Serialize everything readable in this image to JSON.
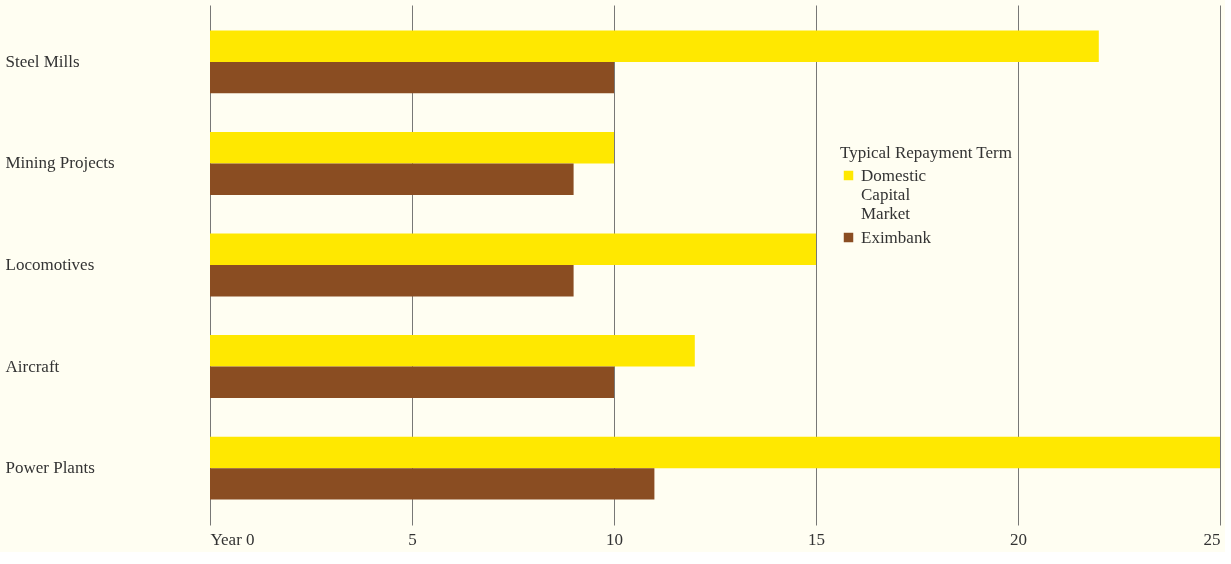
{
  "chart_data": {
    "type": "bar",
    "orientation": "horizontal",
    "categories": [
      "Steel Mills",
      "Mining Projects",
      "Locomotives",
      "Aircraft",
      "Power Plants"
    ],
    "series": [
      {
        "name": "Domestic Capital Market",
        "color": "#ffe800",
        "values": [
          22,
          10,
          15,
          12,
          25
        ]
      },
      {
        "name": "Eximbank",
        "color": "#8a4d22",
        "values": [
          10,
          9,
          9,
          10,
          11
        ]
      }
    ],
    "xlim": [
      0,
      25
    ],
    "xticks": [
      {
        "value": 0,
        "label": "Year 0"
      },
      5,
      10,
      15,
      20,
      25
    ],
    "legend_title": "Typical Repayment Term",
    "legend": "right",
    "grid": "x"
  }
}
